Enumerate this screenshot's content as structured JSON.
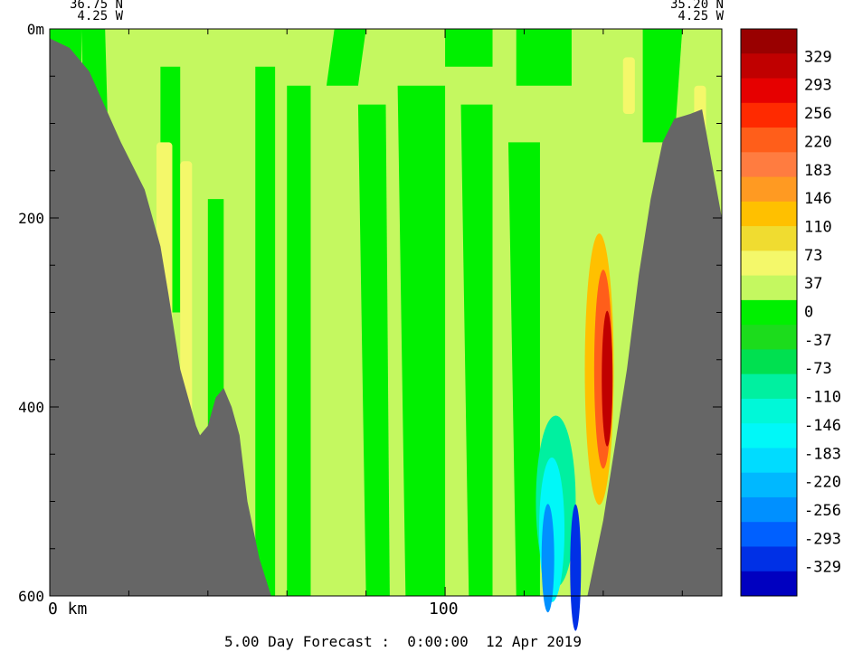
{
  "header": {
    "left_lat": "36.75 N",
    "left_lon": "4.25 W",
    "right_lat": "35.20 N",
    "right_lon": "4.25 W"
  },
  "footer": {
    "forecast": "5.00 Day Forecast :  0:00:00  12 Apr 2019"
  },
  "chart_data": {
    "type": "heatmap",
    "title": "",
    "xlabel": "km",
    "ylabel": "m",
    "x_range_km": [
      0,
      170
    ],
    "y_range_m": [
      0,
      600
    ],
    "x_ticks": [
      0,
      100
    ],
    "x_tick_labels": [
      "0 km",
      "100"
    ],
    "y_ticks": [
      0,
      200,
      400,
      600
    ],
    "y_tick_labels": [
      "0m",
      "200",
      "400",
      "600"
    ],
    "colorbar": {
      "labels": [
        "329",
        "293",
        "256",
        "220",
        "183",
        "146",
        "110",
        "73",
        "37",
        "0",
        "-37",
        "-73",
        "-110",
        "-146",
        "-183",
        "-220",
        "-256",
        "-293",
        "-329"
      ],
      "colors": [
        "#990000",
        "#c00000",
        "#e60000",
        "#ff2a00",
        "#ff5e1a",
        "#ff7c40",
        "#ff9a22",
        "#ffc000",
        "#f0dc30",
        "#f4f86a",
        "#c4f860",
        "#00f000",
        "#1cdc1c",
        "#00e050",
        "#00f0a0",
        "#00f8d8",
        "#00f8f8",
        "#00dcff",
        "#00b8ff",
        "#0090ff",
        "#0060ff",
        "#0030e6",
        "#0000c0"
      ]
    },
    "land_color": "#666666",
    "background_color": "#c4f860",
    "left_slope_depth_profile": [
      [
        0,
        10
      ],
      [
        5,
        20
      ],
      [
        10,
        45
      ],
      [
        18,
        120
      ],
      [
        24,
        170
      ],
      [
        28,
        230
      ],
      [
        30,
        280
      ],
      [
        33,
        360
      ],
      [
        37,
        420
      ],
      [
        38,
        430
      ],
      [
        40,
        420
      ],
      [
        42,
        390
      ],
      [
        44,
        380
      ],
      [
        46,
        400
      ],
      [
        48,
        430
      ],
      [
        50,
        500
      ],
      [
        53,
        560
      ],
      [
        56,
        600
      ]
    ],
    "right_ridge_profile": [
      [
        136,
        600
      ],
      [
        140,
        520
      ],
      [
        143,
        440
      ],
      [
        146,
        360
      ],
      [
        149,
        260
      ],
      [
        152,
        180
      ],
      [
        155,
        120
      ],
      [
        158,
        95
      ],
      [
        162,
        90
      ],
      [
        165,
        85
      ],
      [
        170,
        200
      ],
      [
        170,
        600
      ]
    ]
  }
}
